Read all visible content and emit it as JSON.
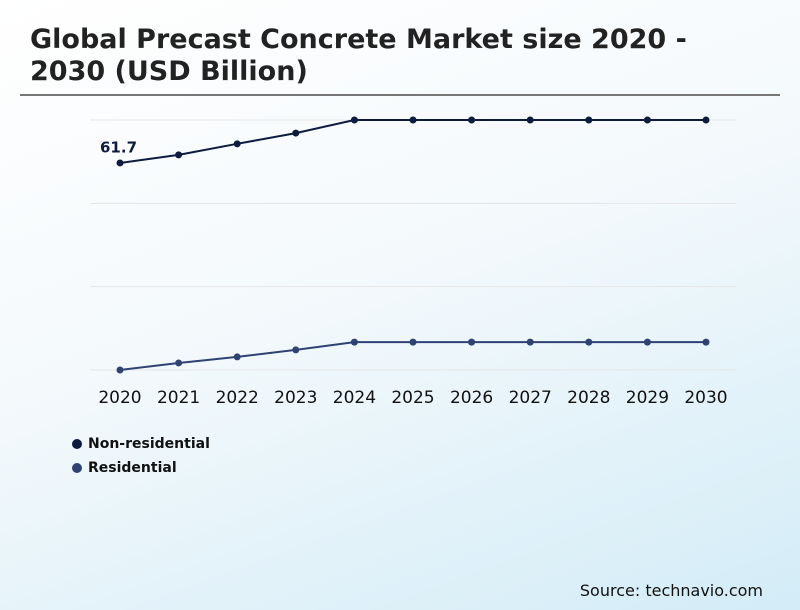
{
  "chart_data": {
    "type": "line",
    "title": "Global Precast Concrete Market size 2020 - 2030 (USD Billion)",
    "categories": [
      "2020",
      "2021",
      "2022",
      "2023",
      "2024",
      "2025",
      "2026",
      "2027",
      "2028",
      "2029",
      "2030"
    ],
    "series": [
      {
        "name": "Non-residential",
        "color": "#0d1b3e",
        "values": [
          61.7,
          64.1,
          67.4,
          70.6,
          74.5,
          74.5,
          74.5,
          74.5,
          74.5,
          74.5,
          74.5
        ],
        "value_labels": [
          "61.7",
          null,
          null,
          null,
          null,
          null,
          null,
          null,
          null,
          null,
          null
        ]
      },
      {
        "name": "Residential",
        "color": "#2e4374",
        "values": [
          0,
          2.1,
          3.9,
          6.0,
          8.3,
          8.3,
          8.3,
          8.3,
          8.3,
          8.3,
          8.3
        ]
      }
    ],
    "ylim": [
      0,
      74.5
    ],
    "grid": true,
    "source": "Source: technavio.com"
  }
}
